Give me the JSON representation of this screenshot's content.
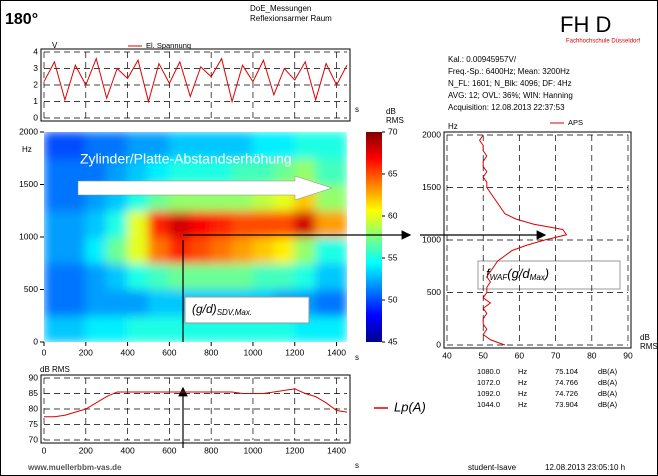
{
  "header": {
    "angle": "180°",
    "project": "DoE_Messungen",
    "room": "Reflexionsarmer Raum",
    "logo": "FH D",
    "school": "Fachhochschule Düsseldorf"
  },
  "info": [
    "Kal.: 0.00945957V/",
    "Freq.-Sp.: 6400Hz; Mean: 3200Hz",
    "N_FL: 1601; N_Blk: 4096; DF: 4Hz",
    "AVG: 12; OVL: 36%; WIN: Hanning",
    "Acquisition: 12.08.2013 22:37:53"
  ],
  "peaks": [
    [
      "1080.0",
      "Hz",
      "75.104",
      "dB(A)"
    ],
    [
      "1072.0",
      "Hz",
      "74.766",
      "dB(A)"
    ],
    [
      "1092.0",
      "Hz",
      "74.726",
      "dB(A)"
    ],
    [
      "1044.0",
      "Hz",
      "73.904",
      "dB(A)"
    ]
  ],
  "footer": {
    "website": "www.muellerbbm-vas.de",
    "user": "student-Isave",
    "timestamp": "12.08.2013 23:05:10 h"
  },
  "chart_data": [
    {
      "type": "line",
      "ylabel": "V",
      "xlabel": "s",
      "x": [
        0,
        50,
        100,
        150,
        200,
        250,
        300,
        350,
        400,
        450,
        500,
        550,
        600,
        650,
        700,
        750,
        800,
        850,
        900,
        950,
        1000,
        1050,
        1100,
        1150,
        1200,
        1250,
        1300,
        1350,
        1400,
        1450
      ],
      "series": [
        {
          "name": "El. Spannung",
          "color": "#e00000",
          "values": [
            2.2,
            3.4,
            1.1,
            3.2,
            2.0,
            3.6,
            1.2,
            3.0,
            2.4,
            3.5,
            1.0,
            3.3,
            2.1,
            3.4,
            1.3,
            3.1,
            2.5,
            3.6,
            1.0,
            3.2,
            2.2,
            3.5,
            1.4,
            3.0,
            2.3,
            3.4,
            1.1,
            3.3,
            2.0,
            3.2
          ]
        }
      ],
      "xlim": [
        0,
        1450
      ],
      "ylim": [
        0,
        4
      ],
      "xticks": [
        0,
        200,
        400,
        600,
        800,
        1000,
        1200,
        1400
      ],
      "yticks": [
        0,
        1,
        2,
        3,
        4
      ],
      "grid": true
    },
    {
      "type": "heatmap",
      "ylabel": "Hz",
      "xlabel": "s",
      "x_edges": [
        0,
        100,
        200,
        300,
        400,
        500,
        600,
        700,
        800,
        900,
        1000,
        1100,
        1200,
        1300,
        1400,
        1450
      ],
      "y_edges": [
        0,
        250,
        500,
        750,
        1000,
        1250,
        1500,
        1750,
        2000
      ],
      "z": [
        [
          53,
          53,
          54,
          54,
          55,
          55,
          55,
          55,
          55,
          55,
          55,
          55,
          54,
          54,
          54
        ],
        [
          51,
          51,
          52,
          52,
          52,
          53,
          53,
          53,
          53,
          53,
          53,
          52,
          52,
          51,
          51
        ],
        [
          51,
          51,
          52,
          53,
          55,
          56,
          57,
          57,
          57,
          57,
          56,
          56,
          55,
          53,
          53
        ],
        [
          52,
          52,
          54,
          57,
          60,
          64,
          66,
          65,
          64,
          63,
          62,
          61,
          58,
          55,
          55
        ],
        [
          52,
          52,
          53,
          55,
          60,
          66,
          68,
          67,
          66,
          65,
          65,
          65,
          68,
          63,
          63
        ],
        [
          51,
          51,
          52,
          53,
          55,
          57,
          58,
          58,
          58,
          58,
          59,
          60,
          62,
          58,
          58
        ],
        [
          51,
          51,
          51,
          52,
          53,
          54,
          55,
          55,
          55,
          56,
          56,
          57,
          58,
          56,
          56
        ],
        [
          50,
          50,
          51,
          51,
          52,
          52,
          53,
          53,
          53,
          53,
          54,
          54,
          55,
          55,
          55
        ]
      ],
      "xlim": [
        0,
        1450
      ],
      "ylim": [
        0,
        2000
      ],
      "xticks": [
        0,
        200,
        400,
        600,
        800,
        1000,
        1200,
        1400
      ],
      "yticks": [
        0,
        500,
        1000,
        1500,
        2000
      ],
      "zlim": [
        45,
        70
      ],
      "zticks": [
        45,
        50,
        55,
        60,
        65,
        70
      ],
      "colorbar_label": [
        "dB",
        "RMS"
      ],
      "colormap": "jet",
      "annotation": "Zylinder/Platte-Abstandserhöhung",
      "annotation_sdv": [
        "(g/d)",
        "SDV,Max."
      ]
    },
    {
      "type": "line",
      "ylabel": "Hz",
      "xlabel": [
        "dB",
        "RMS"
      ],
      "y": [
        0,
        50,
        100,
        150,
        200,
        250,
        300,
        350,
        400,
        450,
        500,
        550,
        600,
        650,
        700,
        750,
        800,
        850,
        900,
        950,
        1000,
        1050,
        1100,
        1150,
        1200,
        1250,
        1300,
        1350,
        1400,
        1450,
        1500,
        1550,
        1600,
        1650,
        1700,
        1750,
        1800,
        1850,
        1900,
        1950,
        2000
      ],
      "series": [
        {
          "name": "APS",
          "color": "#e00000",
          "values": [
            56,
            52,
            50,
            51,
            50,
            50,
            51,
            50,
            52,
            50,
            51,
            51,
            52,
            51,
            52,
            53,
            54,
            56,
            58,
            62,
            67,
            73,
            72,
            64,
            59,
            56,
            55,
            54,
            53,
            52,
            51,
            51,
            50,
            51,
            50,
            50,
            51,
            50,
            50,
            49,
            50
          ]
        }
      ],
      "xlim": [
        40,
        90
      ],
      "ylim": [
        0,
        2000
      ],
      "xticks": [
        40,
        50,
        60,
        70,
        80,
        90
      ],
      "yticks": [
        0,
        500,
        1000,
        1500,
        2000
      ],
      "grid": true,
      "annotation": [
        "f",
        "WAF",
        "(g/d",
        "Max",
        ")"
      ]
    },
    {
      "type": "line",
      "ylabel": "dB RMS",
      "xlabel": "s",
      "x": [
        0,
        50,
        100,
        150,
        200,
        250,
        300,
        350,
        400,
        450,
        500,
        550,
        600,
        650,
        700,
        750,
        800,
        850,
        900,
        950,
        1000,
        1050,
        1100,
        1150,
        1200,
        1250,
        1300,
        1350,
        1400,
        1450
      ],
      "series": [
        {
          "name": "Lp(A)",
          "color": "#e00000",
          "values": [
            77.5,
            77.5,
            78,
            79,
            80,
            82,
            84,
            85.5,
            85.5,
            85.5,
            85.5,
            85.5,
            85.5,
            85.5,
            85.5,
            85.5,
            85.5,
            85.5,
            85.5,
            85,
            85,
            85,
            85.5,
            86,
            86.5,
            85,
            84,
            82,
            79.5,
            79
          ]
        }
      ],
      "xlim": [
        0,
        1450
      ],
      "ylim": [
        70,
        90
      ],
      "xticks": [
        0,
        200,
        400,
        600,
        800,
        1000,
        1200,
        1400
      ],
      "yticks": [
        70,
        75,
        80,
        85,
        90
      ],
      "grid": true
    }
  ]
}
